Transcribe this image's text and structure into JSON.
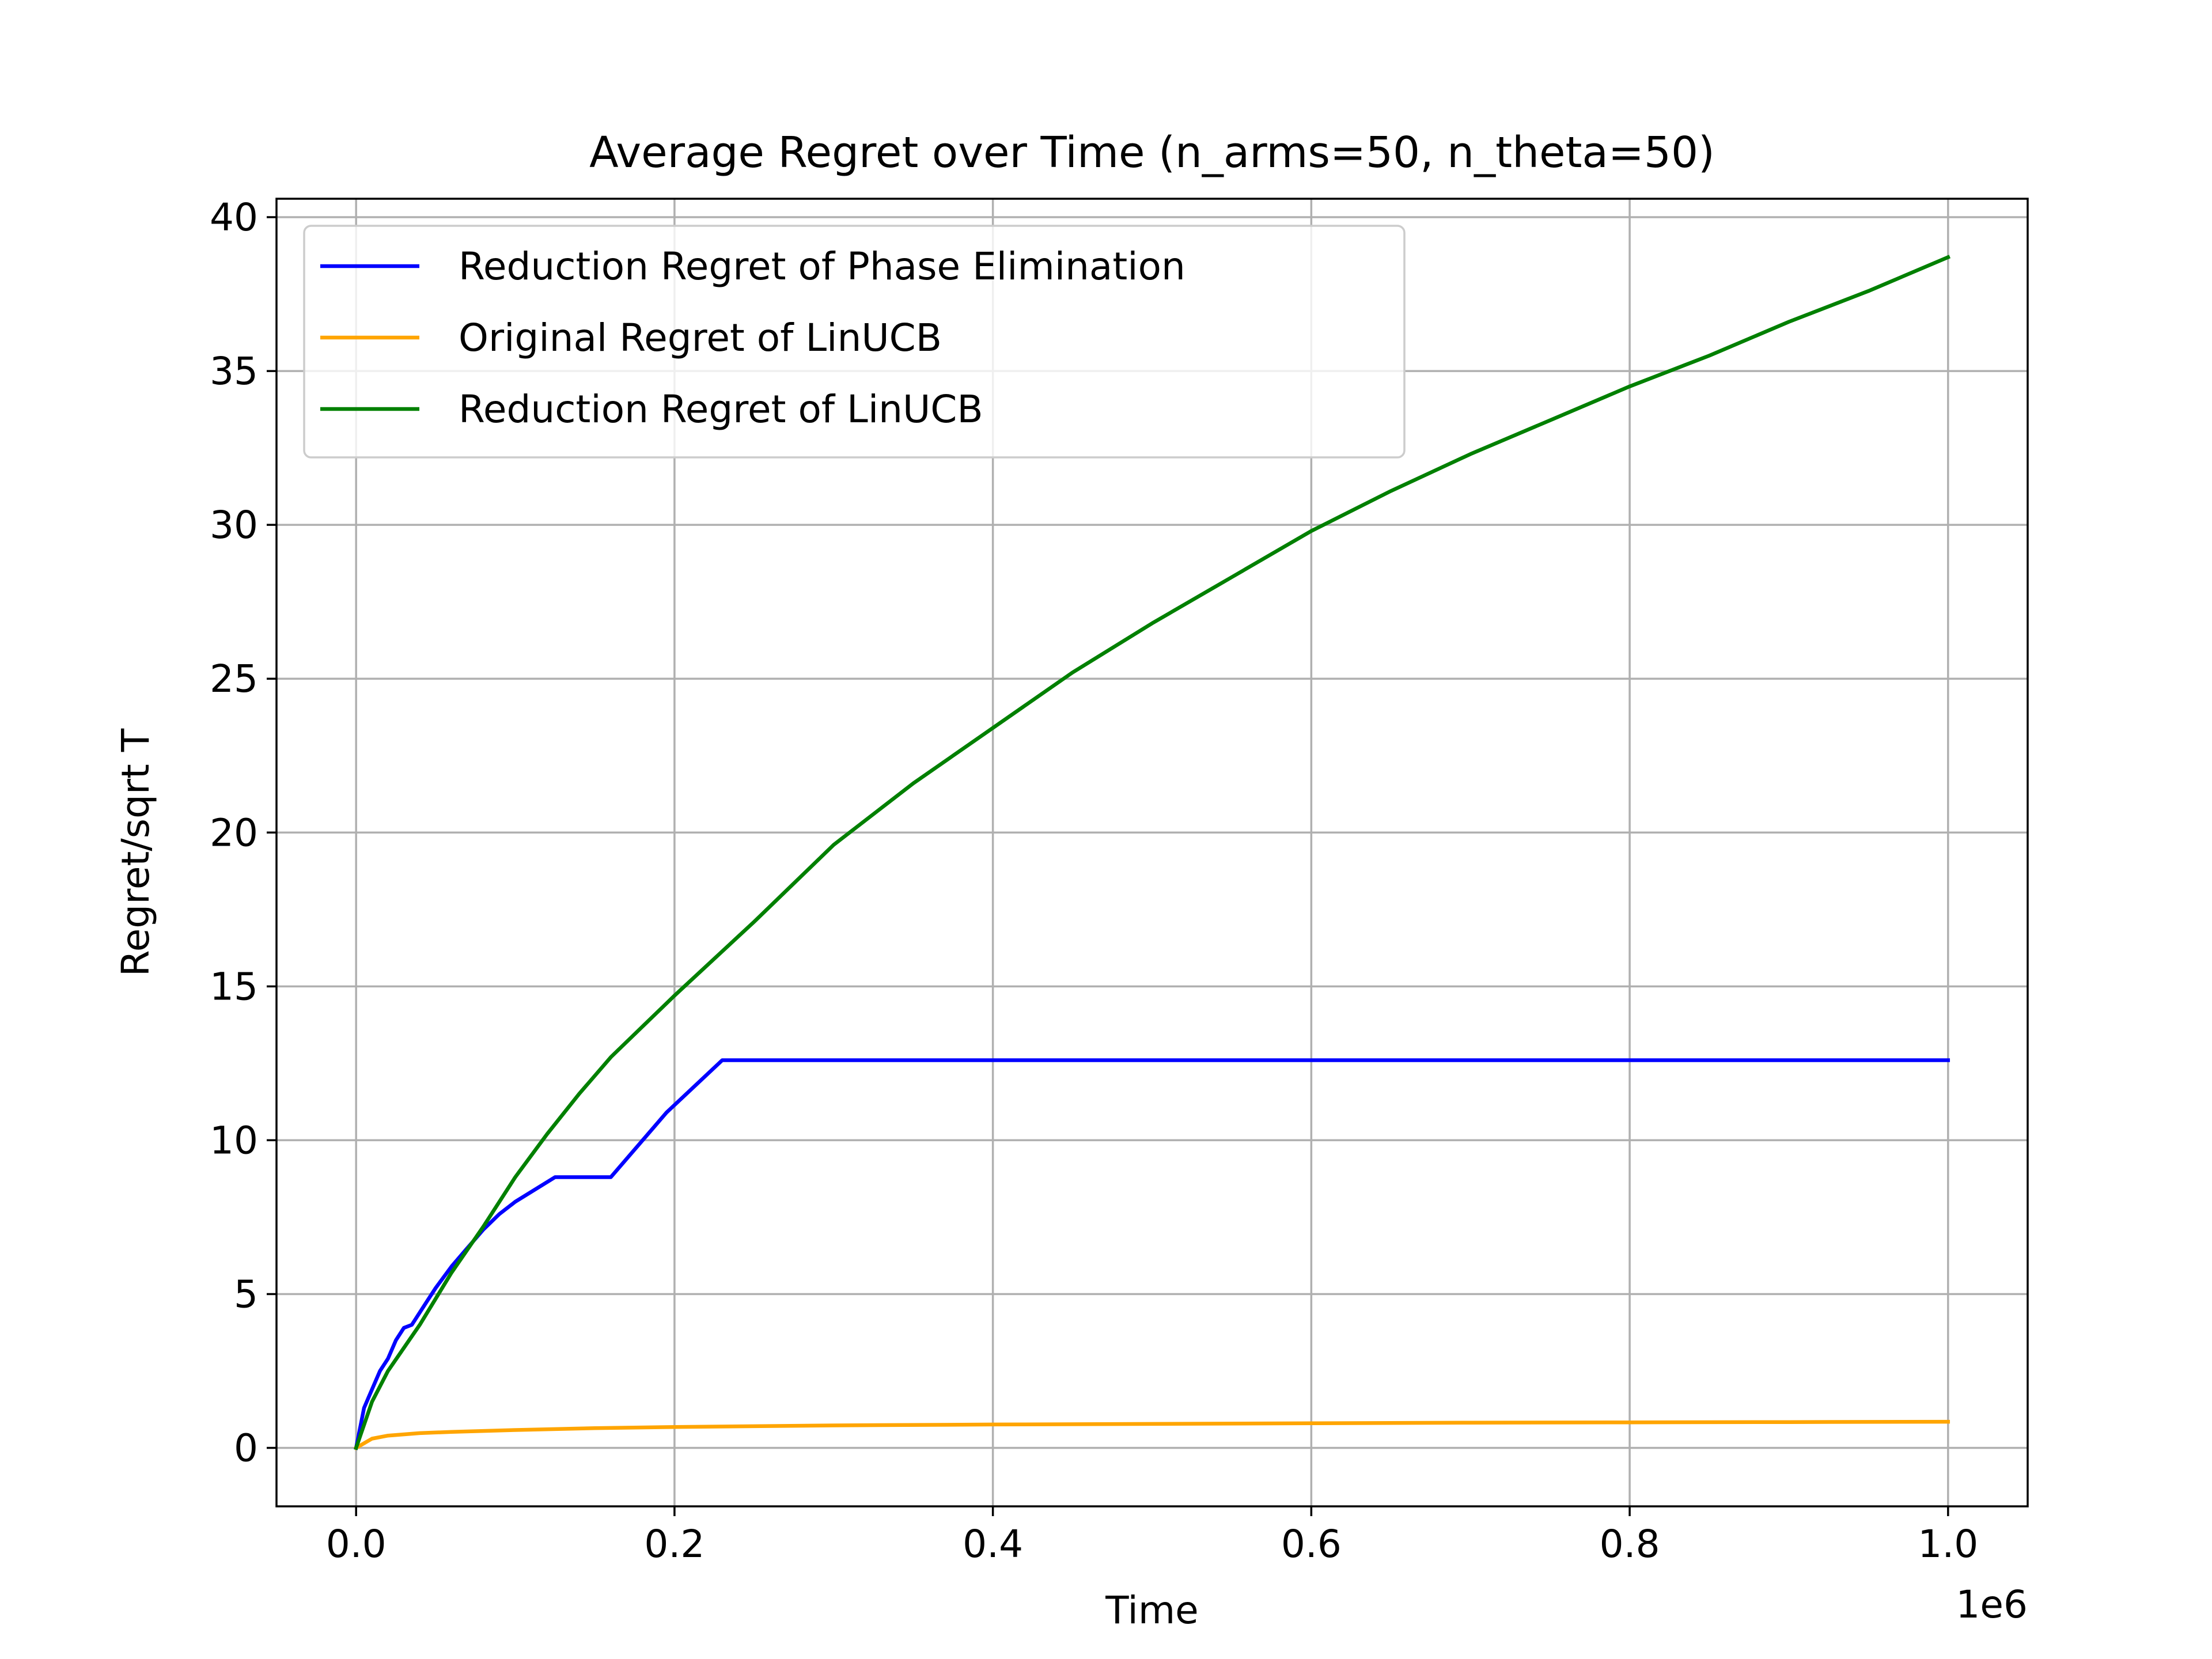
{
  "chart_data": {
    "type": "line",
    "title": "Average Regret over Time (n_arms=50, n_theta=50)",
    "xlabel": "Time",
    "ylabel": "Regret/sqrt T",
    "x_offset_label": "1e6",
    "xlim": [
      -0.05,
      1.05
    ],
    "ylim": [
      -1.9,
      40.6
    ],
    "xticks": [
      0.0,
      0.2,
      0.4,
      0.6,
      0.8,
      1.0
    ],
    "xtick_labels": [
      "0.0",
      "0.2",
      "0.4",
      "0.6",
      "0.8",
      "1.0"
    ],
    "yticks": [
      0,
      5,
      10,
      15,
      20,
      25,
      30,
      35,
      40
    ],
    "ytick_labels": [
      "0",
      "5",
      "10",
      "15",
      "20",
      "25",
      "30",
      "35",
      "40"
    ],
    "grid": true,
    "legend_position": "top-left",
    "series": [
      {
        "name": "Reduction Regret of Phase Elimination",
        "color": "#0000ff",
        "x": [
          0.0,
          0.005,
          0.01,
          0.015,
          0.02,
          0.025,
          0.03,
          0.035,
          0.04,
          0.045,
          0.05,
          0.06,
          0.07,
          0.08,
          0.09,
          0.1,
          0.125,
          0.16,
          0.195,
          0.23,
          0.3,
          0.4,
          0.5,
          0.6,
          0.7,
          0.8,
          0.9,
          1.0
        ],
        "y": [
          0.0,
          1.3,
          1.9,
          2.5,
          2.9,
          3.5,
          3.9,
          4.0,
          4.4,
          4.8,
          5.2,
          5.9,
          6.5,
          7.1,
          7.6,
          8.0,
          8.8,
          8.8,
          10.9,
          12.6,
          12.6,
          12.6,
          12.6,
          12.6,
          12.6,
          12.6,
          12.6,
          12.6
        ]
      },
      {
        "name": "Original Regret of LinUCB",
        "color": "#ffa500",
        "x": [
          0.0,
          0.01,
          0.02,
          0.04,
          0.06,
          0.1,
          0.15,
          0.2,
          0.3,
          0.4,
          0.5,
          0.6,
          0.7,
          0.8,
          0.9,
          1.0
        ],
        "y": [
          0.0,
          0.3,
          0.4,
          0.48,
          0.52,
          0.58,
          0.64,
          0.68,
          0.73,
          0.76,
          0.78,
          0.8,
          0.82,
          0.83,
          0.84,
          0.85
        ]
      },
      {
        "name": "Reduction Regret of LinUCB",
        "color": "#008000",
        "x": [
          0.0,
          0.01,
          0.02,
          0.04,
          0.06,
          0.08,
          0.1,
          0.12,
          0.14,
          0.16,
          0.18,
          0.2,
          0.25,
          0.3,
          0.35,
          0.4,
          0.45,
          0.5,
          0.55,
          0.6,
          0.65,
          0.7,
          0.75,
          0.8,
          0.85,
          0.9,
          0.95,
          1.0
        ],
        "y": [
          0.0,
          1.5,
          2.5,
          4.0,
          5.7,
          7.2,
          8.8,
          10.2,
          11.5,
          12.7,
          13.7,
          14.7,
          17.1,
          19.6,
          21.6,
          23.4,
          25.2,
          26.8,
          28.3,
          29.8,
          31.1,
          32.3,
          33.4,
          34.5,
          35.5,
          36.6,
          37.6,
          38.7
        ]
      }
    ]
  }
}
